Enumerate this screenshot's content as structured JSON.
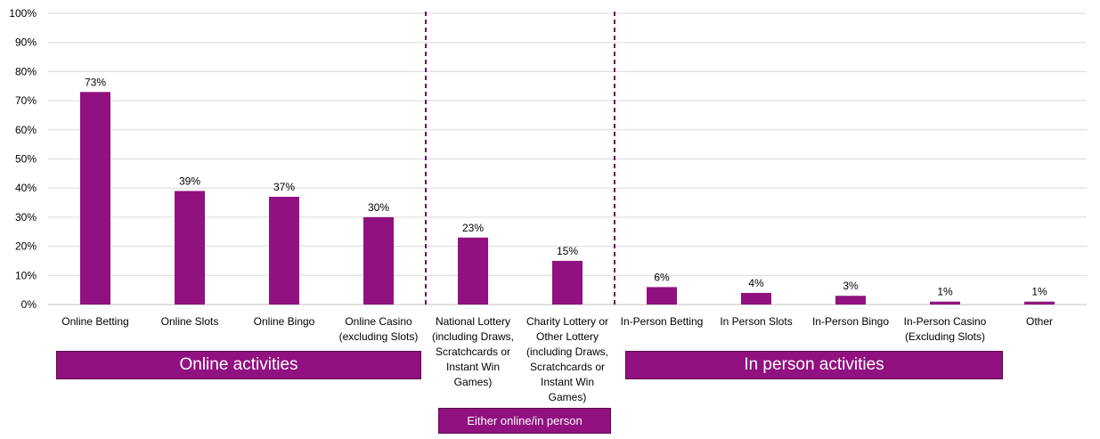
{
  "chart_data": {
    "type": "bar",
    "categories": [
      [
        "Online Betting"
      ],
      [
        "Online Slots"
      ],
      [
        "Online Bingo"
      ],
      [
        "Online Casino",
        "(excluding Slots)"
      ],
      [
        "National Lottery",
        "(including Draws,",
        "Scratchcards or",
        "Instant Win",
        "Games)"
      ],
      [
        "Charity Lottery or",
        "Other Lottery",
        "(including Draws,",
        "Scratchcards or",
        "Instant Win",
        "Games)"
      ],
      [
        "In-Person Betting"
      ],
      [
        "In Person Slots"
      ],
      [
        "In-Person Bingo"
      ],
      [
        "In-Person Casino",
        "(Excluding Slots)"
      ],
      [
        "Other"
      ]
    ],
    "values": [
      73,
      39,
      37,
      30,
      23,
      15,
      6,
      4,
      3,
      1,
      1
    ],
    "data_labels": [
      "73%",
      "39%",
      "37%",
      "30%",
      "23%",
      "15%",
      "6%",
      "4%",
      "3%",
      "1%",
      "1%"
    ],
    "ylim": [
      0,
      100
    ],
    "yticks": [
      "0%",
      "10%",
      "20%",
      "30%",
      "40%",
      "50%",
      "60%",
      "70%",
      "80%",
      "90%",
      "100%"
    ],
    "grid": true,
    "bar_color": "#911180",
    "divider_color": "#6b1060",
    "groups": [
      {
        "label": "Online activities"
      },
      {
        "label": "Either online/in person"
      },
      {
        "label": "In person activities"
      }
    ]
  }
}
